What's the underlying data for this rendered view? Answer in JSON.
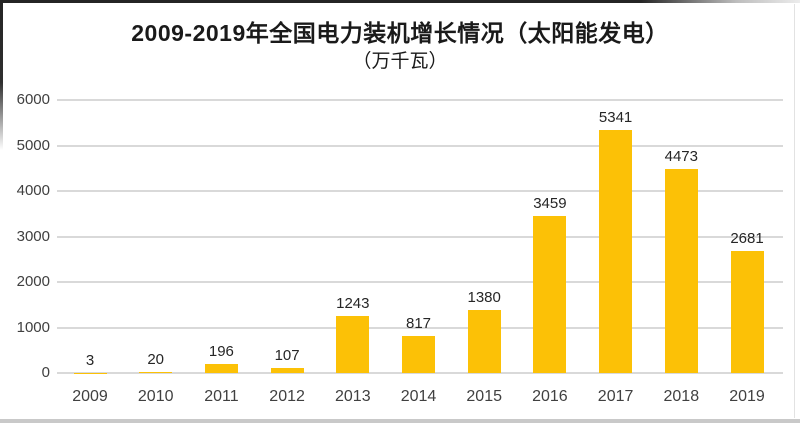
{
  "chart_data": {
    "type": "bar",
    "title": "2009-2019年全国电力装机增长情况（太阳能发电）",
    "subtitle": "（万千瓦）",
    "categories": [
      "2009",
      "2010",
      "2011",
      "2012",
      "2013",
      "2014",
      "2015",
      "2016",
      "2017",
      "2018",
      "2019"
    ],
    "values": [
      3,
      20,
      196,
      107,
      1243,
      817,
      1380,
      3459,
      5341,
      4473,
      2681
    ],
    "value_labels": [
      "3",
      "20",
      "196",
      "107",
      "1243",
      "817",
      "1380",
      "3459",
      "5341",
      "4473",
      "2681"
    ],
    "xlabel": "",
    "ylabel": "",
    "ylim": [
      0,
      6000
    ],
    "yticks": [
      0,
      1000,
      2000,
      3000,
      4000,
      5000,
      6000
    ],
    "grid": true,
    "legend": "none",
    "data_labels": "above-bars",
    "colors": {
      "bar": "#FCC106",
      "gridline": "#D9D9D9",
      "axis_text": "#404040",
      "data_label_text": "#262626",
      "title_text": "#1A1A1A",
      "background": "#FFFFFF"
    }
  }
}
